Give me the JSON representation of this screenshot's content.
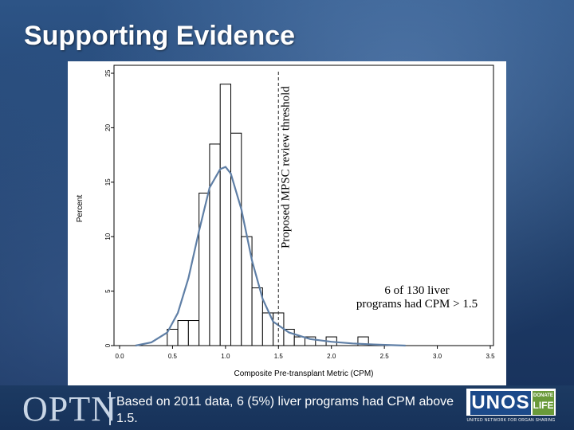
{
  "slide": {
    "title": "Supporting Evidence",
    "caption": "Based on 2011 data, 6 (5%) liver programs had CPM above 1.5.",
    "logo_left": "OPTN",
    "logo_right_word": "UNOS",
    "logo_right_badge_top": "DONATE",
    "logo_right_badge_bottom": "LIFE",
    "logo_right_subtitle": "UNITED NETWORK FOR ORGAN SHARING"
  },
  "colors": {
    "background": "#1f3f6a",
    "title": "#ffffff",
    "curve": "#5f7fa6",
    "bars": "#000000",
    "threshold": "#444444"
  },
  "chart_data": {
    "type": "bar",
    "subtype": "histogram",
    "title": "",
    "xlabel": "Composite Pre-transplant Metric (CPM)",
    "ylabel": "Percent",
    "xlim": [
      0.0,
      3.5
    ],
    "ylim": [
      0,
      25
    ],
    "xticks": [
      "0.0",
      "0.5",
      "1.0",
      "1.5",
      "2.0",
      "2.5",
      "3.0",
      "3.5"
    ],
    "yticks": [
      "0",
      "5",
      "10",
      "15",
      "20",
      "25"
    ],
    "bin_width": 0.1,
    "bins": [
      {
        "start": 0.45,
        "value": 1.5
      },
      {
        "start": 0.55,
        "value": 2.3
      },
      {
        "start": 0.65,
        "value": 2.3
      },
      {
        "start": 0.75,
        "value": 14.0
      },
      {
        "start": 0.85,
        "value": 18.5
      },
      {
        "start": 0.95,
        "value": 24.0
      },
      {
        "start": 1.05,
        "value": 19.5
      },
      {
        "start": 1.15,
        "value": 10.0
      },
      {
        "start": 1.25,
        "value": 5.3
      },
      {
        "start": 1.35,
        "value": 3.0
      },
      {
        "start": 1.45,
        "value": 3.0
      },
      {
        "start": 1.55,
        "value": 1.5
      },
      {
        "start": 1.65,
        "value": 0.8
      },
      {
        "start": 1.75,
        "value": 0.8
      },
      {
        "start": 1.95,
        "value": 0.8
      },
      {
        "start": 2.25,
        "value": 0.8
      }
    ],
    "density_curve": {
      "x": [
        0.15,
        0.3,
        0.45,
        0.55,
        0.65,
        0.75,
        0.85,
        0.95,
        1.0,
        1.05,
        1.15,
        1.25,
        1.35,
        1.45,
        1.6,
        1.8,
        2.0,
        2.2,
        2.4,
        2.7
      ],
      "y": [
        0.0,
        0.3,
        1.2,
        3.0,
        6.2,
        10.5,
        14.5,
        16.2,
        16.4,
        15.8,
        12.5,
        7.8,
        4.3,
        2.2,
        1.2,
        0.6,
        0.35,
        0.2,
        0.1,
        0.0
      ]
    },
    "threshold": {
      "x": 1.5,
      "label": "Proposed MPSC review threshold"
    },
    "annotation": {
      "line1": "6 of 130 liver",
      "line2": "programs had CPM > 1.5"
    }
  }
}
